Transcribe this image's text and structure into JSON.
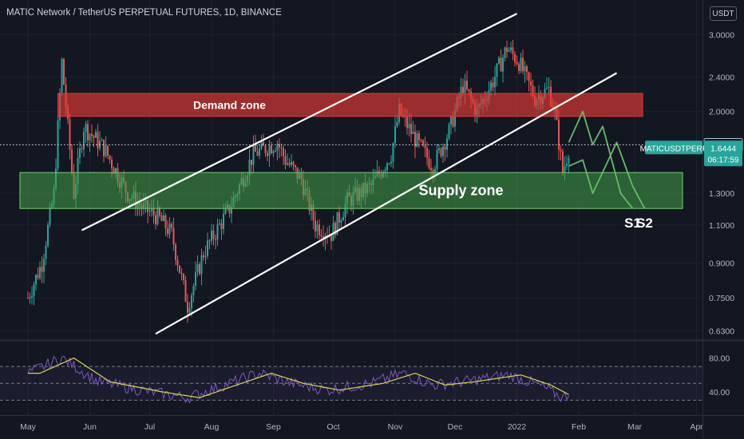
{
  "header": {
    "symbol_title": "MATIC Network / TetherUS PERPETUAL FUTURES, 1D, BINANCE",
    "currency_badge": "USDT"
  },
  "price_scale_labels": [
    "3.0000",
    "2.4000",
    "2.0000",
    "1.3000",
    "1.1000",
    "0.9000",
    "0.7500",
    "0.6300"
  ],
  "rsi_scale_labels": [
    "80.00",
    "40.00"
  ],
  "time_labels": [
    "May",
    "Jun",
    "Jul",
    "Aug",
    "Sep",
    "Oct",
    "Nov",
    "Dec",
    "2022",
    "Feb",
    "Mar",
    "Apr"
  ],
  "markers": {
    "prev_close": "1.6782",
    "ticker": "MATICUSDTPERP",
    "last_price": "1.6444",
    "countdown": "06:17:59"
  },
  "annotations": {
    "demand_zone": "Demand zone",
    "supply_zone": "Supply zone",
    "s1": "S1",
    "s2": "S2"
  },
  "colors": {
    "background": "#131722",
    "up_candle": "#26a69a",
    "down_candle": "#ef5350",
    "demand_zone": "#e53935",
    "supply_zone": "#43a047",
    "trendline": "#ffffff",
    "projection": "#66bb6a",
    "rsi_line": "#7e57c2",
    "rsi_ma": "#d4d84a",
    "last_price_badge": "#26a69a"
  },
  "chart_data": {
    "type": "candlestick",
    "symbol": "MATICUSDTPERP",
    "timeframe": "1D",
    "y_scale": "log",
    "ylim": [
      0.6,
      3.6
    ],
    "series": [
      {
        "name": "MATICUSDTPERP",
        "points": [
          {
            "x": "2021-05-01",
            "y": 0.75
          },
          {
            "x": "2021-05-08",
            "y": 0.9
          },
          {
            "x": "2021-05-14",
            "y": 1.3
          },
          {
            "x": "2021-05-18",
            "y": 2.6
          },
          {
            "x": "2021-05-24",
            "y": 1.3
          },
          {
            "x": "2021-05-29",
            "y": 1.85
          },
          {
            "x": "2021-06-08",
            "y": 1.65
          },
          {
            "x": "2021-06-20",
            "y": 1.3
          },
          {
            "x": "2021-06-28",
            "y": 1.2
          },
          {
            "x": "2021-07-05",
            "y": 1.15
          },
          {
            "x": "2021-07-12",
            "y": 1.05
          },
          {
            "x": "2021-07-20",
            "y": 0.72
          },
          {
            "x": "2021-07-28",
            "y": 0.95
          },
          {
            "x": "2021-08-10",
            "y": 1.2
          },
          {
            "x": "2021-08-22",
            "y": 1.6
          },
          {
            "x": "2021-09-03",
            "y": 1.7
          },
          {
            "x": "2021-09-07",
            "y": 1.55
          },
          {
            "x": "2021-09-15",
            "y": 1.4
          },
          {
            "x": "2021-09-22",
            "y": 1.1
          },
          {
            "x": "2021-09-30",
            "y": 1.05
          },
          {
            "x": "2021-10-08",
            "y": 1.25
          },
          {
            "x": "2021-10-20",
            "y": 1.35
          },
          {
            "x": "2021-10-30",
            "y": 1.6
          },
          {
            "x": "2021-11-03",
            "y": 2.0
          },
          {
            "x": "2021-11-12",
            "y": 1.7
          },
          {
            "x": "2021-11-20",
            "y": 1.5
          },
          {
            "x": "2021-11-28",
            "y": 1.8
          },
          {
            "x": "2021-12-05",
            "y": 2.3
          },
          {
            "x": "2021-12-12",
            "y": 2.0
          },
          {
            "x": "2021-12-20",
            "y": 2.35
          },
          {
            "x": "2021-12-27",
            "y": 2.8
          },
          {
            "x": "2022-01-02",
            "y": 2.6
          },
          {
            "x": "2022-01-10",
            "y": 2.15
          },
          {
            "x": "2022-01-17",
            "y": 2.25
          },
          {
            "x": "2022-01-20",
            "y": 2.0
          },
          {
            "x": "2022-01-24",
            "y": 1.45
          },
          {
            "x": "2022-01-27",
            "y": 1.6444
          }
        ]
      }
    ],
    "zones": [
      {
        "label": "Demand zone",
        "from": 1.95,
        "to": 2.2
      },
      {
        "label": "Supply zone",
        "from": 1.2,
        "to": 1.45
      }
    ],
    "projections": [
      {
        "label": "S1",
        "path": [
          {
            "x": "2022-01-27",
            "y": 1.7
          },
          {
            "x": "2022-02-03",
            "y": 2.0
          },
          {
            "x": "2022-02-08",
            "y": 1.68
          },
          {
            "x": "2022-02-13",
            "y": 1.85
          },
          {
            "x": "2022-02-22",
            "y": 1.3
          },
          {
            "x": "2022-02-28",
            "y": 1.2
          }
        ]
      },
      {
        "label": "S2",
        "path": [
          {
            "x": "2022-01-27",
            "y": 1.5
          },
          {
            "x": "2022-02-03",
            "y": 1.55
          },
          {
            "x": "2022-02-08",
            "y": 1.3
          },
          {
            "x": "2022-02-20",
            "y": 1.7
          },
          {
            "x": "2022-02-28",
            "y": 1.35
          },
          {
            "x": "2022-03-06",
            "y": 1.2
          }
        ]
      }
    ],
    "rsi": {
      "ylim": [
        20,
        90
      ],
      "guide_levels": [
        70,
        50,
        30
      ],
      "points": [
        {
          "x": "2021-05-01",
          "y": 62
        },
        {
          "x": "2021-05-18",
          "y": 80
        },
        {
          "x": "2021-06-05",
          "y": 52
        },
        {
          "x": "2021-07-01",
          "y": 40
        },
        {
          "x": "2021-07-20",
          "y": 33
        },
        {
          "x": "2021-08-10",
          "y": 50
        },
        {
          "x": "2021-08-25",
          "y": 62
        },
        {
          "x": "2021-09-10",
          "y": 50
        },
        {
          "x": "2021-09-28",
          "y": 42
        },
        {
          "x": "2021-10-20",
          "y": 50
        },
        {
          "x": "2021-11-05",
          "y": 62
        },
        {
          "x": "2021-11-20",
          "y": 48
        },
        {
          "x": "2021-12-05",
          "y": 52
        },
        {
          "x": "2021-12-28",
          "y": 60
        },
        {
          "x": "2022-01-12",
          "y": 48
        },
        {
          "x": "2022-01-24",
          "y": 33
        },
        {
          "x": "2022-01-27",
          "y": 38
        }
      ]
    }
  }
}
